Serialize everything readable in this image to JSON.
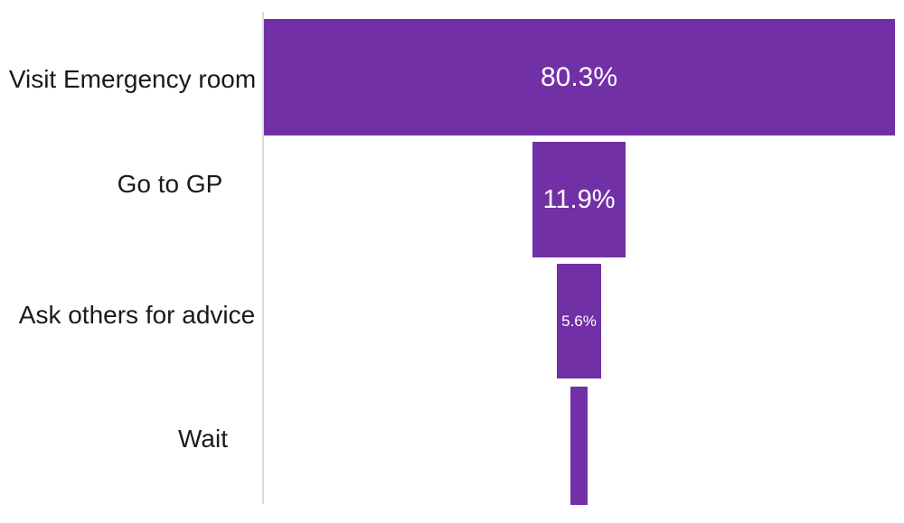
{
  "chart_data": {
    "type": "bar",
    "subtype": "funnel",
    "orientation": "horizontal-centered",
    "title": "",
    "xlabel": "",
    "ylabel": "",
    "legend": false,
    "grid": false,
    "categories": [
      "Visit Emergency room",
      "Go to GP",
      "Ask others for advice",
      "Wait"
    ],
    "values": [
      80.3,
      11.9,
      5.6,
      2.2
    ],
    "data_labels": [
      "80.3%",
      "11.9%",
      "5.6%",
      ""
    ],
    "value_unit": "%",
    "axis": {
      "y_axis_line_visible": true
    },
    "colors": {
      "bar_fill": "#7130A6",
      "data_label_text": "#FFFFFF",
      "category_label_text": "#1A1A1A",
      "axis_line": "#D9D9D9",
      "background": "#FFFFFF"
    }
  }
}
